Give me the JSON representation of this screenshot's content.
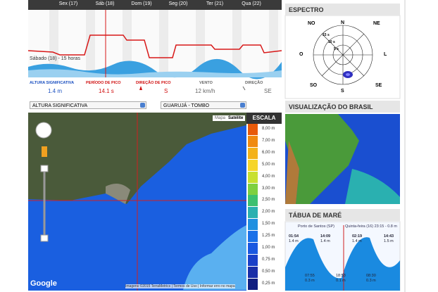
{
  "forecast": {
    "days": [
      "Sex (17)",
      "Sáb (18)",
      "Dom (19)",
      "Seg (20)",
      "Ter (21)",
      "Qua (22)"
    ],
    "moment": "Sábado (18) - 15 horas",
    "stats": [
      {
        "label": "ALTURA SIGNIFICATIVA",
        "value": "1.4 m",
        "color": "#1a4fc0"
      },
      {
        "label": "PERÍODO DE PICO",
        "value": "14.1 s",
        "color": "#d01010"
      },
      {
        "label": "DIREÇÃO DE PICO",
        "value": "S",
        "color": "#d01010"
      },
      {
        "label": "VENTO",
        "value": "12 km/h",
        "color": "#666666"
      },
      {
        "label": "DIREÇÃO",
        "value": "SE",
        "color": "#666666"
      }
    ]
  },
  "controls": {
    "variable": "ALTURA SIGNIFICATIVA",
    "spot": "GUARUJÁ - TOMBO",
    "map_button": "Mapa",
    "satellite_button": "Satélite"
  },
  "scale": {
    "title": "ESCALA",
    "items": [
      {
        "label": "8,00 m",
        "color": "#e85a0a"
      },
      {
        "label": "7,00 m",
        "color": "#f08a10"
      },
      {
        "label": "6,00 m",
        "color": "#f4b21a"
      },
      {
        "label": "5,00 m",
        "color": "#f6d52a"
      },
      {
        "label": "4,00 m",
        "color": "#c8e030"
      },
      {
        "label": "3,00 m",
        "color": "#7ed040"
      },
      {
        "label": "2,50 m",
        "color": "#3cc070"
      },
      {
        "label": "2,00 m",
        "color": "#2ab0b0"
      },
      {
        "label": "1,50 m",
        "color": "#2090e0"
      },
      {
        "label": "1,25 m",
        "color": "#1a70e8"
      },
      {
        "label": "1,00 m",
        "color": "#1a58e0"
      },
      {
        "label": "0,75 m",
        "color": "#1a40c8"
      },
      {
        "label": "0,50 m",
        "color": "#1a2ea8"
      },
      {
        "label": "0,25 m",
        "color": "#101e80"
      }
    ]
  },
  "map_footer": {
    "logo": "Google",
    "credits": "Imagens ©2015 TerraMetrics | Termos de Uso | Informar erro no mapa"
  },
  "spectrum": {
    "title": "ESPECTRO",
    "directions": [
      "N",
      "NE",
      "L",
      "SE",
      "S",
      "SO",
      "O",
      "NO"
    ],
    "rings": [
      "15 s",
      "10 s",
      "5 s"
    ]
  },
  "brazil": {
    "title": "VISUALIZAÇÃO DO BRASIL"
  },
  "tide": {
    "title": "TÁBUA DE MARÉ",
    "port": "Porto de Santos (SP)",
    "current": "Quinta-feira (16) 23:15 - 0.8 m",
    "highs": [
      {
        "time": "01:54",
        "height": "1.4 m"
      },
      {
        "time": "14:09",
        "height": "1.4 m"
      },
      {
        "time": "02:19",
        "height": "1.4 m"
      },
      {
        "time": "14:43",
        "height": "1.5 m"
      }
    ],
    "lows": [
      {
        "time": "07:55",
        "height": "0.3 m"
      },
      {
        "time": "18:53",
        "height": "0.1 m"
      },
      {
        "time": "08:30",
        "height": "0.3 m"
      }
    ]
  }
}
